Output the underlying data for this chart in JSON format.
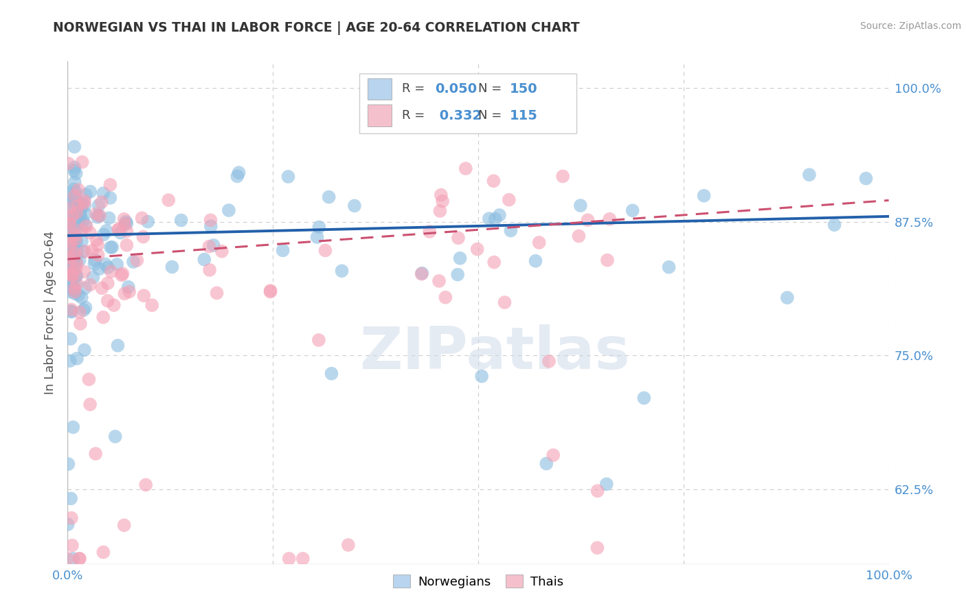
{
  "title": "NORWEGIAN VS THAI IN LABOR FORCE | AGE 20-64 CORRELATION CHART",
  "source": "Source: ZipAtlas.com",
  "ylabel": "In Labor Force | Age 20-64",
  "xlim": [
    0.0,
    1.0
  ],
  "ylim": [
    0.555,
    1.025
  ],
  "yticks": [
    0.625,
    0.75,
    0.875,
    1.0
  ],
  "ytick_labels": [
    "62.5%",
    "75.0%",
    "87.5%",
    "100.0%"
  ],
  "xtick_labels": [
    "0.0%",
    "100.0%"
  ],
  "norwegian_R": 0.05,
  "norwegian_N": 150,
  "thai_R": 0.332,
  "thai_N": 115,
  "norwegian_color": "#8bbde0",
  "thai_color": "#f4a0b5",
  "norwegian_line_color": "#2260aa",
  "thai_line_color": "#cc5070",
  "grid_color": "#cccccc",
  "title_color": "#333333",
  "label_color": "#4a90d0",
  "watermark": "ZIPatlas",
  "legend_norwegian_color": "#b8d4ee",
  "legend_thai_color": "#f4c0cc",
  "norwegian_intercept": 0.862,
  "norwegian_slope": 0.018,
  "thai_intercept": 0.84,
  "thai_slope": 0.055
}
